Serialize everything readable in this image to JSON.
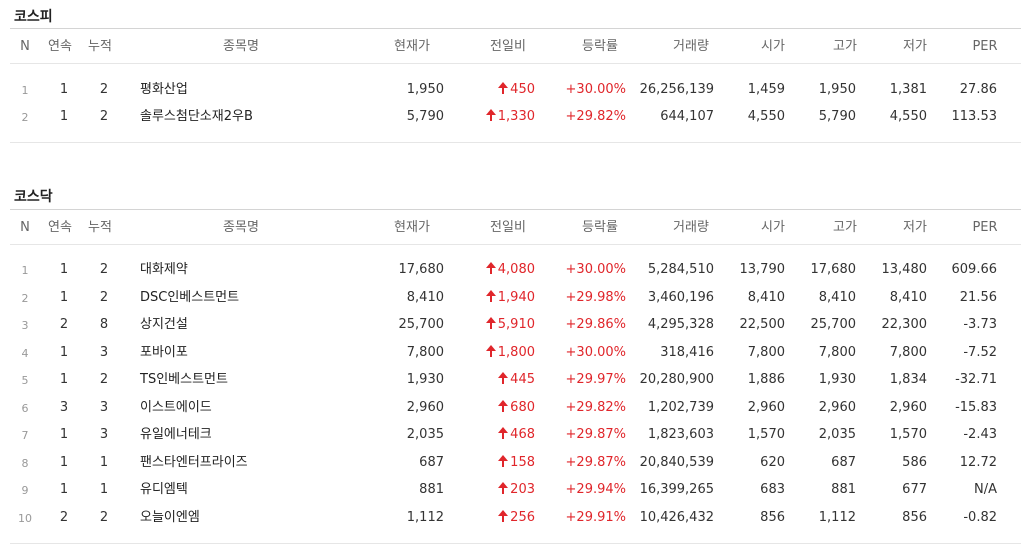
{
  "sections": [
    {
      "title": "코스피",
      "headers": [
        "N",
        "연속",
        "누적",
        "종목명",
        "현재가",
        "전일비",
        "등락률",
        "거래량",
        "시가",
        "고가",
        "저가",
        "PER"
      ],
      "rows": [
        {
          "n": "1",
          "streak": "1",
          "cum": "2",
          "name": "평화산업",
          "price": "1,950",
          "change": "450",
          "rate": "+30.00%",
          "volume": "26,256,139",
          "open": "1,459",
          "high": "1,950",
          "low": "1,381",
          "per": "27.86"
        },
        {
          "n": "2",
          "streak": "1",
          "cum": "2",
          "name": "솔루스첨단소재2우B",
          "price": "5,790",
          "change": "1,330",
          "rate": "+29.82%",
          "volume": "644,107",
          "open": "4,550",
          "high": "5,790",
          "low": "4,550",
          "per": "113.53"
        }
      ]
    },
    {
      "title": "코스닥",
      "headers": [
        "N",
        "연속",
        "누적",
        "종목명",
        "현재가",
        "전일비",
        "등락률",
        "거래량",
        "시가",
        "고가",
        "저가",
        "PER"
      ],
      "rows": [
        {
          "n": "1",
          "streak": "1",
          "cum": "2",
          "name": "대화제약",
          "price": "17,680",
          "change": "4,080",
          "rate": "+30.00%",
          "volume": "5,284,510",
          "open": "13,790",
          "high": "17,680",
          "low": "13,480",
          "per": "609.66"
        },
        {
          "n": "2",
          "streak": "1",
          "cum": "2",
          "name": "DSC인베스트먼트",
          "price": "8,410",
          "change": "1,940",
          "rate": "+29.98%",
          "volume": "3,460,196",
          "open": "8,410",
          "high": "8,410",
          "low": "8,410",
          "per": "21.56"
        },
        {
          "n": "3",
          "streak": "2",
          "cum": "8",
          "name": "상지건설",
          "price": "25,700",
          "change": "5,910",
          "rate": "+29.86%",
          "volume": "4,295,328",
          "open": "22,500",
          "high": "25,700",
          "low": "22,300",
          "per": "-3.73"
        },
        {
          "n": "4",
          "streak": "1",
          "cum": "3",
          "name": "포바이포",
          "price": "7,800",
          "change": "1,800",
          "rate": "+30.00%",
          "volume": "318,416",
          "open": "7,800",
          "high": "7,800",
          "low": "7,800",
          "per": "-7.52"
        },
        {
          "n": "5",
          "streak": "1",
          "cum": "2",
          "name": "TS인베스트먼트",
          "price": "1,930",
          "change": "445",
          "rate": "+29.97%",
          "volume": "20,280,900",
          "open": "1,886",
          "high": "1,930",
          "low": "1,834",
          "per": "-32.71"
        },
        {
          "n": "6",
          "streak": "3",
          "cum": "3",
          "name": "이스트에이드",
          "price": "2,960",
          "change": "680",
          "rate": "+29.82%",
          "volume": "1,202,739",
          "open": "2,960",
          "high": "2,960",
          "low": "2,960",
          "per": "-15.83"
        },
        {
          "n": "7",
          "streak": "1",
          "cum": "3",
          "name": "유일에너테크",
          "price": "2,035",
          "change": "468",
          "rate": "+29.87%",
          "volume": "1,823,603",
          "open": "1,570",
          "high": "2,035",
          "low": "1,570",
          "per": "-2.43"
        },
        {
          "n": "8",
          "streak": "1",
          "cum": "1",
          "name": "팬스타엔터프라이즈",
          "price": "687",
          "change": "158",
          "rate": "+29.87%",
          "volume": "20,840,539",
          "open": "620",
          "high": "687",
          "low": "586",
          "per": "12.72"
        },
        {
          "n": "9",
          "streak": "1",
          "cum": "1",
          "name": "유디엠텍",
          "price": "881",
          "change": "203",
          "rate": "+29.94%",
          "volume": "16,399,265",
          "open": "683",
          "high": "881",
          "low": "677",
          "per": "N/A"
        },
        {
          "n": "10",
          "streak": "2",
          "cum": "2",
          "name": "오늘이엔엠",
          "price": "1,112",
          "change": "256",
          "rate": "+29.91%",
          "volume": "10,426,432",
          "open": "856",
          "high": "1,112",
          "low": "856",
          "per": "-0.82"
        }
      ]
    }
  ],
  "colors": {
    "up": "#e0262b",
    "header_text": "#666666",
    "border": "#d4d4d4"
  },
  "icons": {
    "change_up": "up-arrow-icon"
  }
}
